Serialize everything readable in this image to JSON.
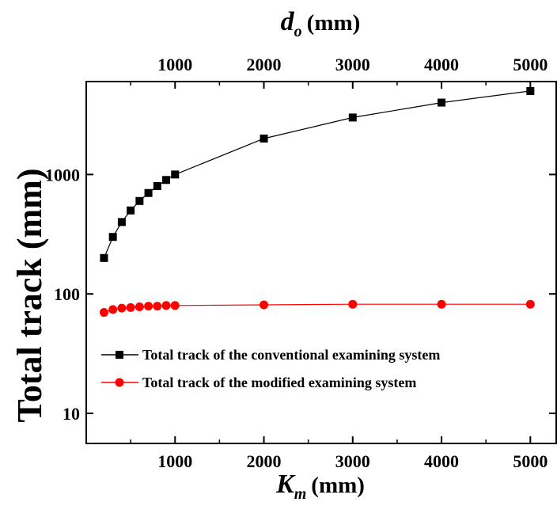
{
  "chart_data": {
    "type": "line",
    "x": [
      200,
      300,
      400,
      500,
      600,
      700,
      800,
      900,
      1000,
      2000,
      3000,
      4000,
      5000
    ],
    "series": [
      {
        "name": "Total track of the conventional examining system",
        "color": "#000000",
        "marker": "square",
        "values": [
          200,
          300,
          400,
          500,
          600,
          700,
          800,
          900,
          1000,
          2000,
          3000,
          4000,
          5000
        ]
      },
      {
        "name": "Total track of the modified examining system",
        "color": "#ff0000",
        "marker": "circle",
        "values": [
          70,
          74,
          76,
          77,
          78,
          79,
          79,
          80,
          80,
          81,
          82,
          82,
          82
        ]
      }
    ],
    "xlabel": {
      "main": "K",
      "sub": "m",
      "unit": "(mm)"
    },
    "x2label": {
      "main": "d",
      "sub": "o",
      "unit": "(mm)"
    },
    "ylabel": "Total track (mm)",
    "xticks": [
      "1000",
      "2000",
      "3000",
      "4000",
      "5000"
    ],
    "yticks": [
      "10",
      "100",
      "1000"
    ],
    "xlim": [
      0,
      5300
    ],
    "ylim": [
      5.6,
      6000
    ],
    "yscale": "log",
    "legend_position": "center-left",
    "grid": false
  }
}
